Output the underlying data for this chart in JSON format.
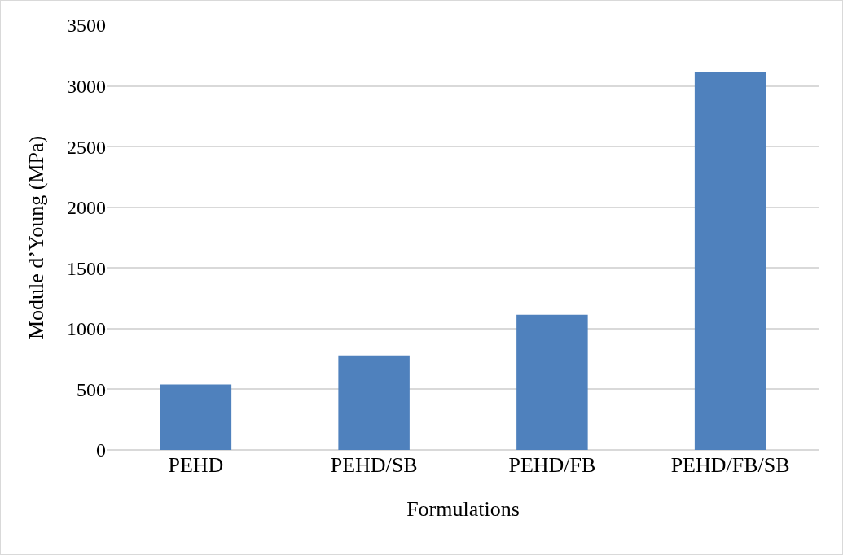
{
  "chart_data": {
    "type": "bar",
    "xlabel": "Formulations",
    "ylabel": "Module d’Young (MPa)",
    "categories": [
      "PEHD",
      "PEHD/SB",
      "PEHD/FB",
      "PEHD/FB/SB"
    ],
    "values": [
      540,
      780,
      1115,
      3115
    ],
    "color": "#4f81bd",
    "ylim": [
      0,
      3500
    ],
    "yticks": [
      0,
      500,
      1000,
      1500,
      2000,
      2500,
      3000,
      3500
    ],
    "grid": "y"
  }
}
